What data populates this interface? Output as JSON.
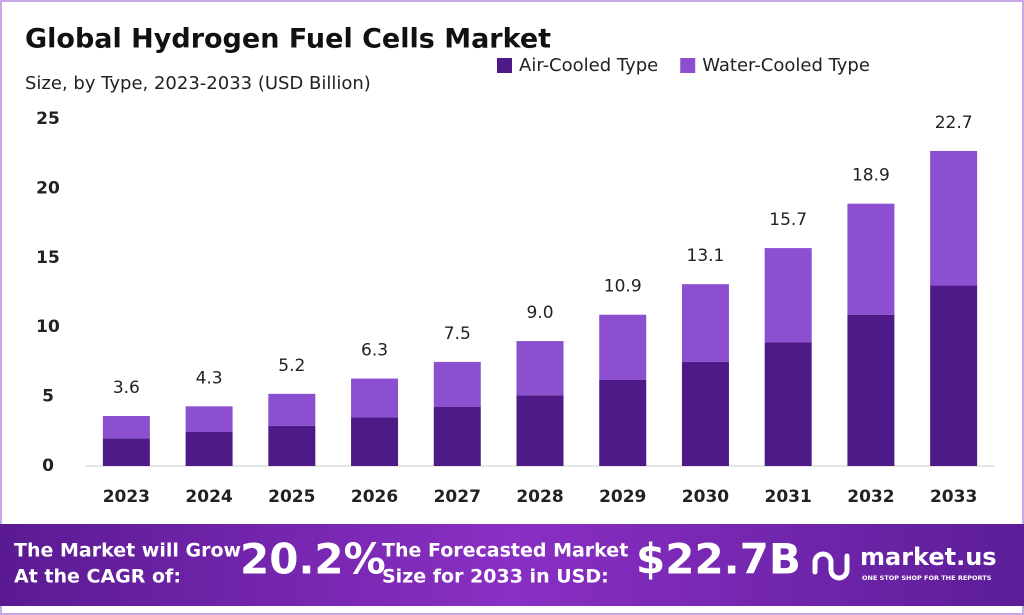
{
  "chart_data": {
    "type": "stacked_bar",
    "title": "Global Hydrogen Fuel Cells Market",
    "subtitle": "Size, by Type, 2023-2033 (USD Billion)",
    "categories": [
      "2023",
      "2024",
      "2025",
      "2026",
      "2027",
      "2028",
      "2029",
      "2030",
      "2031",
      "2032",
      "2033"
    ],
    "series": [
      {
        "name": "Air-Cooled Type",
        "color": "#4e1a87",
        "values": [
          2.0,
          2.45,
          2.9,
          3.5,
          4.25,
          5.1,
          6.2,
          7.5,
          8.9,
          10.9,
          13.0
        ]
      },
      {
        "name": "Water-Cooled Type",
        "color": "#8b4fd0",
        "values": [
          1.6,
          1.85,
          2.3,
          2.8,
          3.25,
          3.9,
          4.7,
          5.6,
          6.8,
          8.0,
          9.7
        ]
      }
    ],
    "totals": [
      3.6,
      4.3,
      5.2,
      6.3,
      7.5,
      9.0,
      10.9,
      13.1,
      15.7,
      18.9,
      22.7
    ],
    "total_labels": [
      "3.6",
      "4.3",
      "5.2",
      "6.3",
      "7.5",
      "9.0",
      "10.9",
      "13.1",
      "15.7",
      "18.9",
      "22.7"
    ],
    "ylim": [
      0,
      25
    ],
    "yticks": [
      0,
      5,
      10,
      15,
      20,
      25
    ],
    "grid": false,
    "legend": "top-right"
  },
  "footer": {
    "cagr_text_1": "The Market will Grow",
    "cagr_text_2": "At the CAGR of:",
    "cagr_value": "20.2%",
    "forecast_text_1": "The Forecasted Market",
    "forecast_text_2": "Size for 2033 in USD:",
    "forecast_value": "$22.7B",
    "brand": "market.us",
    "tagline": "ONE STOP SHOP FOR THE REPORTS"
  }
}
